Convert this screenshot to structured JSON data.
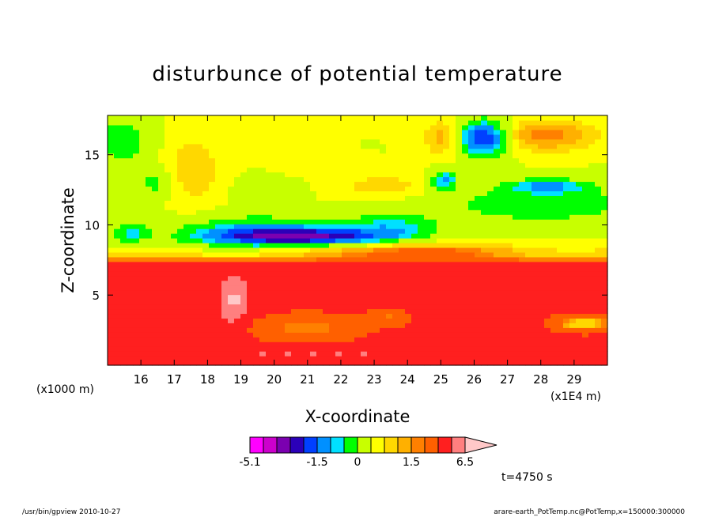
{
  "chart_data": {
    "type": "heatmap",
    "title": "disturbunce of potential temperature",
    "xlabel": "X-coordinate",
    "ylabel": "Z-coordinate",
    "x_unit_label": "(x1E4 m)",
    "y_unit_label": "(x1000 m)",
    "xlim": [
      15.0,
      30.0
    ],
    "ylim": [
      0.0,
      17.8
    ],
    "x_ticks": [
      16,
      17,
      18,
      19,
      20,
      21,
      22,
      23,
      24,
      25,
      26,
      27,
      28,
      29
    ],
    "y_ticks": [
      5,
      10,
      15
    ],
    "colorbar": {
      "levels": [
        -5.1,
        -4.1,
        -3.1,
        -2.6,
        -2.1,
        -1.5,
        -1.1,
        -0.6,
        0,
        0.4,
        0.8,
        1.2,
        1.5,
        2.5,
        3.5,
        4.5,
        6.5
      ],
      "labels": [
        "-5.1",
        "-1.5",
        "0",
        "1.5",
        "6.5"
      ],
      "colors": [
        "#ff00ff",
        "#cc00cc",
        "#7b00b0",
        "#2b00b8",
        "#0040ff",
        "#0090ff",
        "#00e0ff",
        "#00ff00",
        "#c8ff00",
        "#ffff00",
        "#ffd800",
        "#ffb000",
        "#ff8000",
        "#ff6000",
        "#ff1f1f",
        "#ff7f7f",
        "#ffc8c8"
      ]
    },
    "annotation": "t=4750 s"
  },
  "footer": {
    "left": "/usr/bin/gpview   2010-10-27",
    "right": "arare-earth_PotTemp.nc@PotTemp,x=150000:300000"
  }
}
